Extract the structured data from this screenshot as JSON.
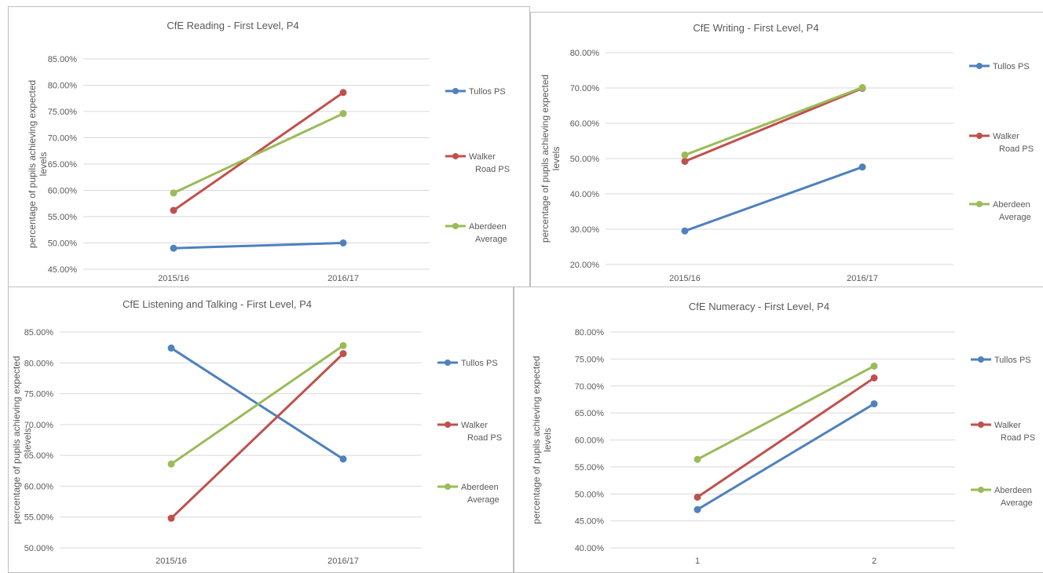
{
  "chart_data": [
    {
      "type": "line",
      "title": "CfE Reading - First Level, P4",
      "ylabel": "percentage of pupils achieving expected levels",
      "categories": [
        "2015/16",
        "2016/17"
      ],
      "yticks": [
        "45.00%",
        "50.00%",
        "55.00%",
        "60.00%",
        "65.00%",
        "70.00%",
        "75.00%",
        "80.00%",
        "85.00%"
      ],
      "ylim": [
        45,
        85
      ],
      "grid": true,
      "legend_position": "right",
      "series": [
        {
          "name": "Tullos PS",
          "values": [
            49.0,
            50.0
          ],
          "color": "#4f81bd"
        },
        {
          "name": "Walker Road PS",
          "values": [
            56.2,
            78.6
          ],
          "color": "#c0504d"
        },
        {
          "name": "Aberdeen Average",
          "values": [
            59.5,
            74.6
          ],
          "color": "#9bbb59"
        }
      ]
    },
    {
      "type": "line",
      "title": "CfE Writing - First Level, P4",
      "ylabel": "percentage of pupils achieving expected levels",
      "categories": [
        "2015/16",
        "2016/17"
      ],
      "yticks": [
        "20.00%",
        "30.00%",
        "40.00%",
        "50.00%",
        "60.00%",
        "70.00%",
        "80.00%"
      ],
      "ylim": [
        20,
        80
      ],
      "grid": true,
      "legend_position": "right",
      "series": [
        {
          "name": "Tullos PS",
          "values": [
            29.5,
            47.6
          ],
          "color": "#4f81bd"
        },
        {
          "name": "Walker Road PS",
          "values": [
            49.2,
            69.9
          ],
          "color": "#c0504d"
        },
        {
          "name": "Aberdeen Average",
          "values": [
            51.0,
            70.1
          ],
          "color": "#9bbb59"
        }
      ]
    },
    {
      "type": "line",
      "title": "CfE Listening and Talking - First Level, P4",
      "ylabel": "percentage of pupils achieving expected levels",
      "categories": [
        "2015/16",
        "2016/17"
      ],
      "yticks": [
        "50.00%",
        "55.00%",
        "60.00%",
        "65.00%",
        "70.00%",
        "75.00%",
        "80.00%",
        "85.00%"
      ],
      "ylim": [
        50,
        85
      ],
      "grid": true,
      "legend_position": "right",
      "series": [
        {
          "name": "Tullos PS",
          "values": [
            82.4,
            64.4
          ],
          "color": "#4f81bd"
        },
        {
          "name": "Walker Road PS",
          "values": [
            54.8,
            81.5
          ],
          "color": "#c0504d"
        },
        {
          "name": "Aberdeen Average",
          "values": [
            63.6,
            82.8
          ],
          "color": "#9bbb59"
        }
      ]
    },
    {
      "type": "line",
      "title": "CfE Numeracy - First Level, P4",
      "ylabel": "percentage of pupils achieving expected levels",
      "categories": [
        "1",
        "2"
      ],
      "yticks": [
        "40.00%",
        "45.00%",
        "50.00%",
        "55.00%",
        "60.00%",
        "65.00%",
        "70.00%",
        "75.00%",
        "80.00%"
      ],
      "ylim": [
        40,
        80
      ],
      "grid": true,
      "legend_position": "right",
      "series": [
        {
          "name": "Tullos PS",
          "values": [
            47.1,
            66.7
          ],
          "color": "#4f81bd"
        },
        {
          "name": "Walker Road PS",
          "values": [
            49.4,
            71.5
          ],
          "color": "#c0504d"
        },
        {
          "name": "Aberdeen Average",
          "values": [
            56.4,
            73.7
          ],
          "color": "#9bbb59"
        }
      ]
    }
  ]
}
